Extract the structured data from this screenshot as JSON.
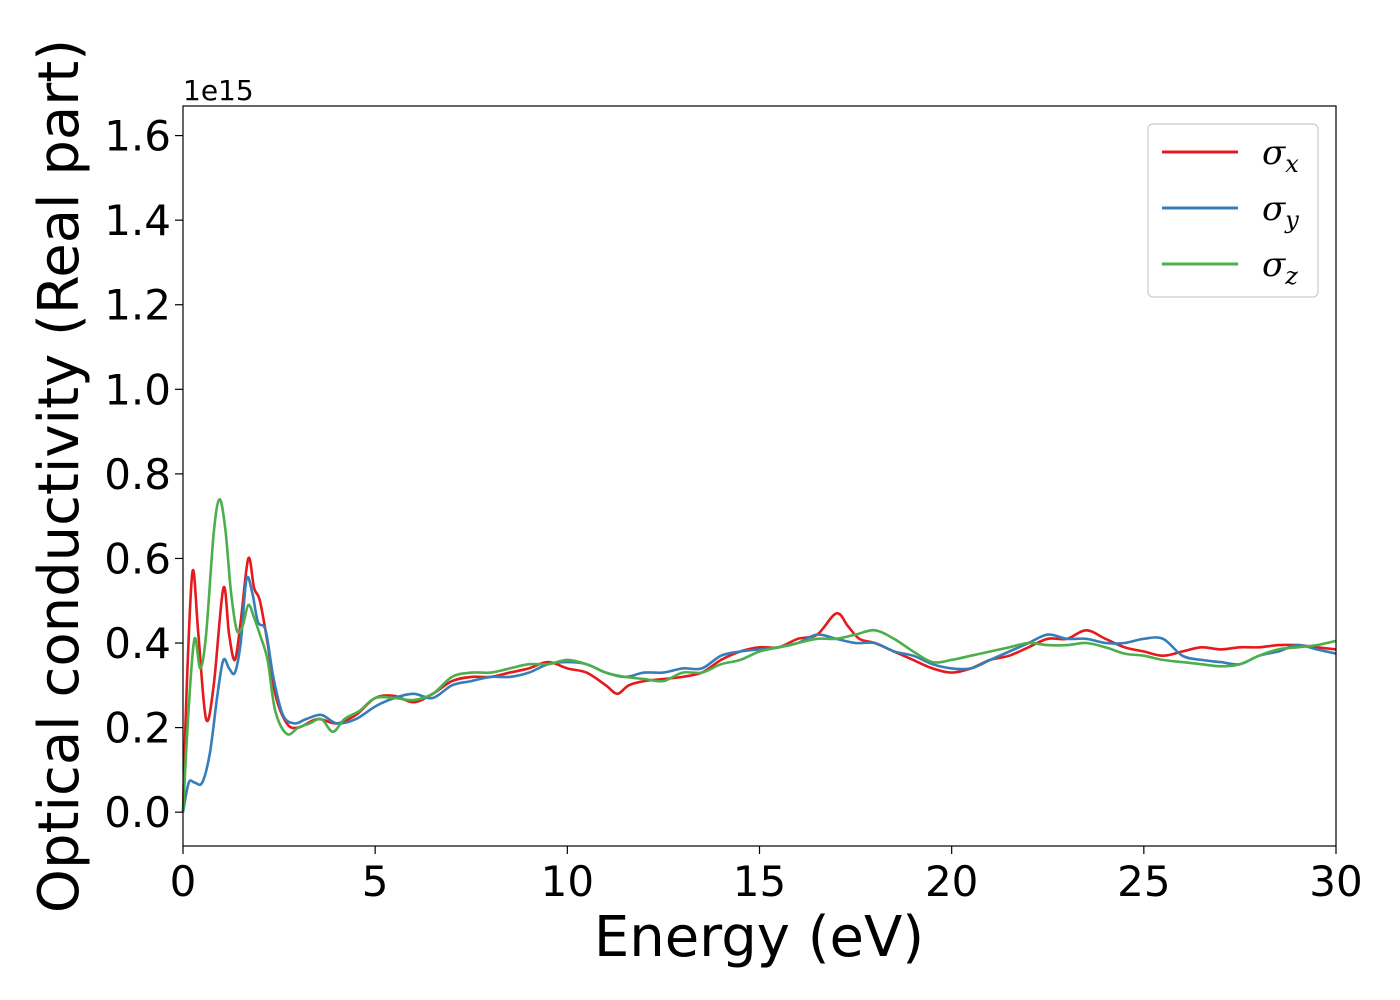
{
  "chart_data": {
    "type": "line",
    "xlabel": "Energy (eV)",
    "ylabel": "Optical conductivity (Real part)",
    "y_offset_label": "1e15",
    "xlim": [
      0,
      30
    ],
    "ylim": [
      -0.08,
      1.67
    ],
    "x_ticks": [
      0,
      5,
      10,
      15,
      20,
      25,
      30
    ],
    "x_tick_labels": [
      "0",
      "5",
      "10",
      "15",
      "20",
      "25",
      "30"
    ],
    "y_ticks": [
      0.0,
      0.2,
      0.4,
      0.6,
      0.8,
      1.0,
      1.2,
      1.4,
      1.6
    ],
    "y_tick_labels": [
      "0.0",
      "0.2",
      "0.4",
      "0.6",
      "0.8",
      "1.0",
      "1.2",
      "1.4",
      "1.6"
    ],
    "grid": false,
    "legend_position": "top-right",
    "series": [
      {
        "name": "σx",
        "symbol": "σ",
        "subscript": "x",
        "color": "#e41a1c",
        "points": [
          [
            0,
            0.0
          ],
          [
            0.1,
            0.3
          ],
          [
            0.25,
            0.57
          ],
          [
            0.4,
            0.42
          ],
          [
            0.6,
            0.22
          ],
          [
            0.8,
            0.3
          ],
          [
            1.05,
            0.53
          ],
          [
            1.2,
            0.42
          ],
          [
            1.35,
            0.36
          ],
          [
            1.5,
            0.45
          ],
          [
            1.7,
            0.6
          ],
          [
            1.85,
            0.53
          ],
          [
            2.0,
            0.5
          ],
          [
            2.2,
            0.4
          ],
          [
            2.4,
            0.28
          ],
          [
            2.7,
            0.21
          ],
          [
            3.0,
            0.2
          ],
          [
            3.5,
            0.22
          ],
          [
            4.0,
            0.21
          ],
          [
            4.5,
            0.23
          ],
          [
            5.0,
            0.27
          ],
          [
            5.5,
            0.275
          ],
          [
            6.0,
            0.26
          ],
          [
            6.5,
            0.28
          ],
          [
            7.0,
            0.31
          ],
          [
            7.5,
            0.32
          ],
          [
            8.0,
            0.32
          ],
          [
            8.5,
            0.33
          ],
          [
            9.0,
            0.34
          ],
          [
            9.5,
            0.355
          ],
          [
            10.0,
            0.34
          ],
          [
            10.5,
            0.33
          ],
          [
            11.0,
            0.3
          ],
          [
            11.3,
            0.28
          ],
          [
            11.6,
            0.3
          ],
          [
            12.0,
            0.31
          ],
          [
            12.5,
            0.315
          ],
          [
            13.0,
            0.32
          ],
          [
            13.5,
            0.33
          ],
          [
            14.0,
            0.36
          ],
          [
            14.5,
            0.38
          ],
          [
            15.0,
            0.39
          ],
          [
            15.5,
            0.39
          ],
          [
            16.0,
            0.41
          ],
          [
            16.5,
            0.42
          ],
          [
            17.0,
            0.47
          ],
          [
            17.3,
            0.44
          ],
          [
            17.6,
            0.41
          ],
          [
            18.0,
            0.4
          ],
          [
            18.5,
            0.38
          ],
          [
            19.0,
            0.36
          ],
          [
            19.5,
            0.34
          ],
          [
            20.0,
            0.33
          ],
          [
            20.5,
            0.34
          ],
          [
            21.0,
            0.36
          ],
          [
            21.5,
            0.37
          ],
          [
            22.0,
            0.39
          ],
          [
            22.5,
            0.41
          ],
          [
            23.0,
            0.41
          ],
          [
            23.5,
            0.43
          ],
          [
            24.0,
            0.41
          ],
          [
            24.5,
            0.39
          ],
          [
            25.0,
            0.38
          ],
          [
            25.5,
            0.37
          ],
          [
            26.0,
            0.38
          ],
          [
            26.5,
            0.39
          ],
          [
            27.0,
            0.385
          ],
          [
            27.5,
            0.39
          ],
          [
            28.0,
            0.39
          ],
          [
            28.5,
            0.395
          ],
          [
            29.0,
            0.395
          ],
          [
            29.5,
            0.39
          ],
          [
            30.0,
            0.385
          ]
        ]
      },
      {
        "name": "σy",
        "symbol": "σ",
        "subscript": "y",
        "color": "#377eb8",
        "points": [
          [
            0,
            0.0
          ],
          [
            0.15,
            0.07
          ],
          [
            0.3,
            0.07
          ],
          [
            0.5,
            0.07
          ],
          [
            0.7,
            0.14
          ],
          [
            0.9,
            0.28
          ],
          [
            1.05,
            0.36
          ],
          [
            1.2,
            0.34
          ],
          [
            1.35,
            0.33
          ],
          [
            1.5,
            0.4
          ],
          [
            1.65,
            0.55
          ],
          [
            1.8,
            0.52
          ],
          [
            1.95,
            0.45
          ],
          [
            2.15,
            0.43
          ],
          [
            2.35,
            0.32
          ],
          [
            2.6,
            0.23
          ],
          [
            2.9,
            0.21
          ],
          [
            3.2,
            0.22
          ],
          [
            3.6,
            0.23
          ],
          [
            4.0,
            0.21
          ],
          [
            4.5,
            0.22
          ],
          [
            5.0,
            0.25
          ],
          [
            5.5,
            0.27
          ],
          [
            6.0,
            0.28
          ],
          [
            6.5,
            0.27
          ],
          [
            7.0,
            0.3
          ],
          [
            7.5,
            0.31
          ],
          [
            8.0,
            0.32
          ],
          [
            8.5,
            0.32
          ],
          [
            9.0,
            0.33
          ],
          [
            9.5,
            0.35
          ],
          [
            10.0,
            0.355
          ],
          [
            10.5,
            0.35
          ],
          [
            11.0,
            0.33
          ],
          [
            11.5,
            0.32
          ],
          [
            12.0,
            0.33
          ],
          [
            12.5,
            0.33
          ],
          [
            13.0,
            0.34
          ],
          [
            13.5,
            0.34
          ],
          [
            14.0,
            0.37
          ],
          [
            14.5,
            0.38
          ],
          [
            15.0,
            0.385
          ],
          [
            15.5,
            0.39
          ],
          [
            16.0,
            0.4
          ],
          [
            16.5,
            0.42
          ],
          [
            17.0,
            0.41
          ],
          [
            17.5,
            0.4
          ],
          [
            18.0,
            0.4
          ],
          [
            18.5,
            0.38
          ],
          [
            19.0,
            0.37
          ],
          [
            19.5,
            0.35
          ],
          [
            20.0,
            0.34
          ],
          [
            20.5,
            0.34
          ],
          [
            21.0,
            0.36
          ],
          [
            21.5,
            0.38
          ],
          [
            22.0,
            0.4
          ],
          [
            22.5,
            0.42
          ],
          [
            23.0,
            0.41
          ],
          [
            23.5,
            0.41
          ],
          [
            24.0,
            0.4
          ],
          [
            24.5,
            0.4
          ],
          [
            25.0,
            0.41
          ],
          [
            25.5,
            0.41
          ],
          [
            26.0,
            0.37
          ],
          [
            26.5,
            0.36
          ],
          [
            27.0,
            0.355
          ],
          [
            27.5,
            0.35
          ],
          [
            28.0,
            0.37
          ],
          [
            28.5,
            0.38
          ],
          [
            29.0,
            0.395
          ],
          [
            29.5,
            0.385
          ],
          [
            30.0,
            0.375
          ]
        ]
      },
      {
        "name": "σz",
        "symbol": "σ",
        "subscript": "z",
        "color": "#4daf4a",
        "points": [
          [
            0,
            0.0
          ],
          [
            0.15,
            0.25
          ],
          [
            0.3,
            0.41
          ],
          [
            0.45,
            0.34
          ],
          [
            0.6,
            0.42
          ],
          [
            0.8,
            0.66
          ],
          [
            0.95,
            0.74
          ],
          [
            1.1,
            0.67
          ],
          [
            1.25,
            0.52
          ],
          [
            1.4,
            0.43
          ],
          [
            1.55,
            0.44
          ],
          [
            1.7,
            0.49
          ],
          [
            1.85,
            0.46
          ],
          [
            2.0,
            0.42
          ],
          [
            2.2,
            0.36
          ],
          [
            2.4,
            0.24
          ],
          [
            2.7,
            0.185
          ],
          [
            3.0,
            0.2
          ],
          [
            3.3,
            0.21
          ],
          [
            3.6,
            0.22
          ],
          [
            3.9,
            0.19
          ],
          [
            4.2,
            0.22
          ],
          [
            4.6,
            0.24
          ],
          [
            5.0,
            0.27
          ],
          [
            5.5,
            0.27
          ],
          [
            6.0,
            0.265
          ],
          [
            6.5,
            0.28
          ],
          [
            7.0,
            0.32
          ],
          [
            7.5,
            0.33
          ],
          [
            8.0,
            0.33
          ],
          [
            8.5,
            0.34
          ],
          [
            9.0,
            0.35
          ],
          [
            9.5,
            0.35
          ],
          [
            10.0,
            0.36
          ],
          [
            10.5,
            0.35
          ],
          [
            11.0,
            0.33
          ],
          [
            11.5,
            0.32
          ],
          [
            12.0,
            0.315
          ],
          [
            12.5,
            0.31
          ],
          [
            13.0,
            0.33
          ],
          [
            13.5,
            0.33
          ],
          [
            14.0,
            0.35
          ],
          [
            14.5,
            0.36
          ],
          [
            15.0,
            0.38
          ],
          [
            15.5,
            0.39
          ],
          [
            16.0,
            0.4
          ],
          [
            16.5,
            0.41
          ],
          [
            17.0,
            0.41
          ],
          [
            17.5,
            0.42
          ],
          [
            18.0,
            0.43
          ],
          [
            18.5,
            0.41
          ],
          [
            19.0,
            0.38
          ],
          [
            19.5,
            0.355
          ],
          [
            20.0,
            0.36
          ],
          [
            20.5,
            0.37
          ],
          [
            21.0,
            0.38
          ],
          [
            21.5,
            0.39
          ],
          [
            22.0,
            0.4
          ],
          [
            22.5,
            0.395
          ],
          [
            23.0,
            0.395
          ],
          [
            23.5,
            0.4
          ],
          [
            24.0,
            0.39
          ],
          [
            24.5,
            0.375
          ],
          [
            25.0,
            0.37
          ],
          [
            25.5,
            0.36
          ],
          [
            26.0,
            0.355
          ],
          [
            26.5,
            0.35
          ],
          [
            27.0,
            0.345
          ],
          [
            27.5,
            0.35
          ],
          [
            28.0,
            0.37
          ],
          [
            28.5,
            0.385
          ],
          [
            29.0,
            0.39
          ],
          [
            29.5,
            0.395
          ],
          [
            30.0,
            0.405
          ]
        ]
      }
    ]
  }
}
